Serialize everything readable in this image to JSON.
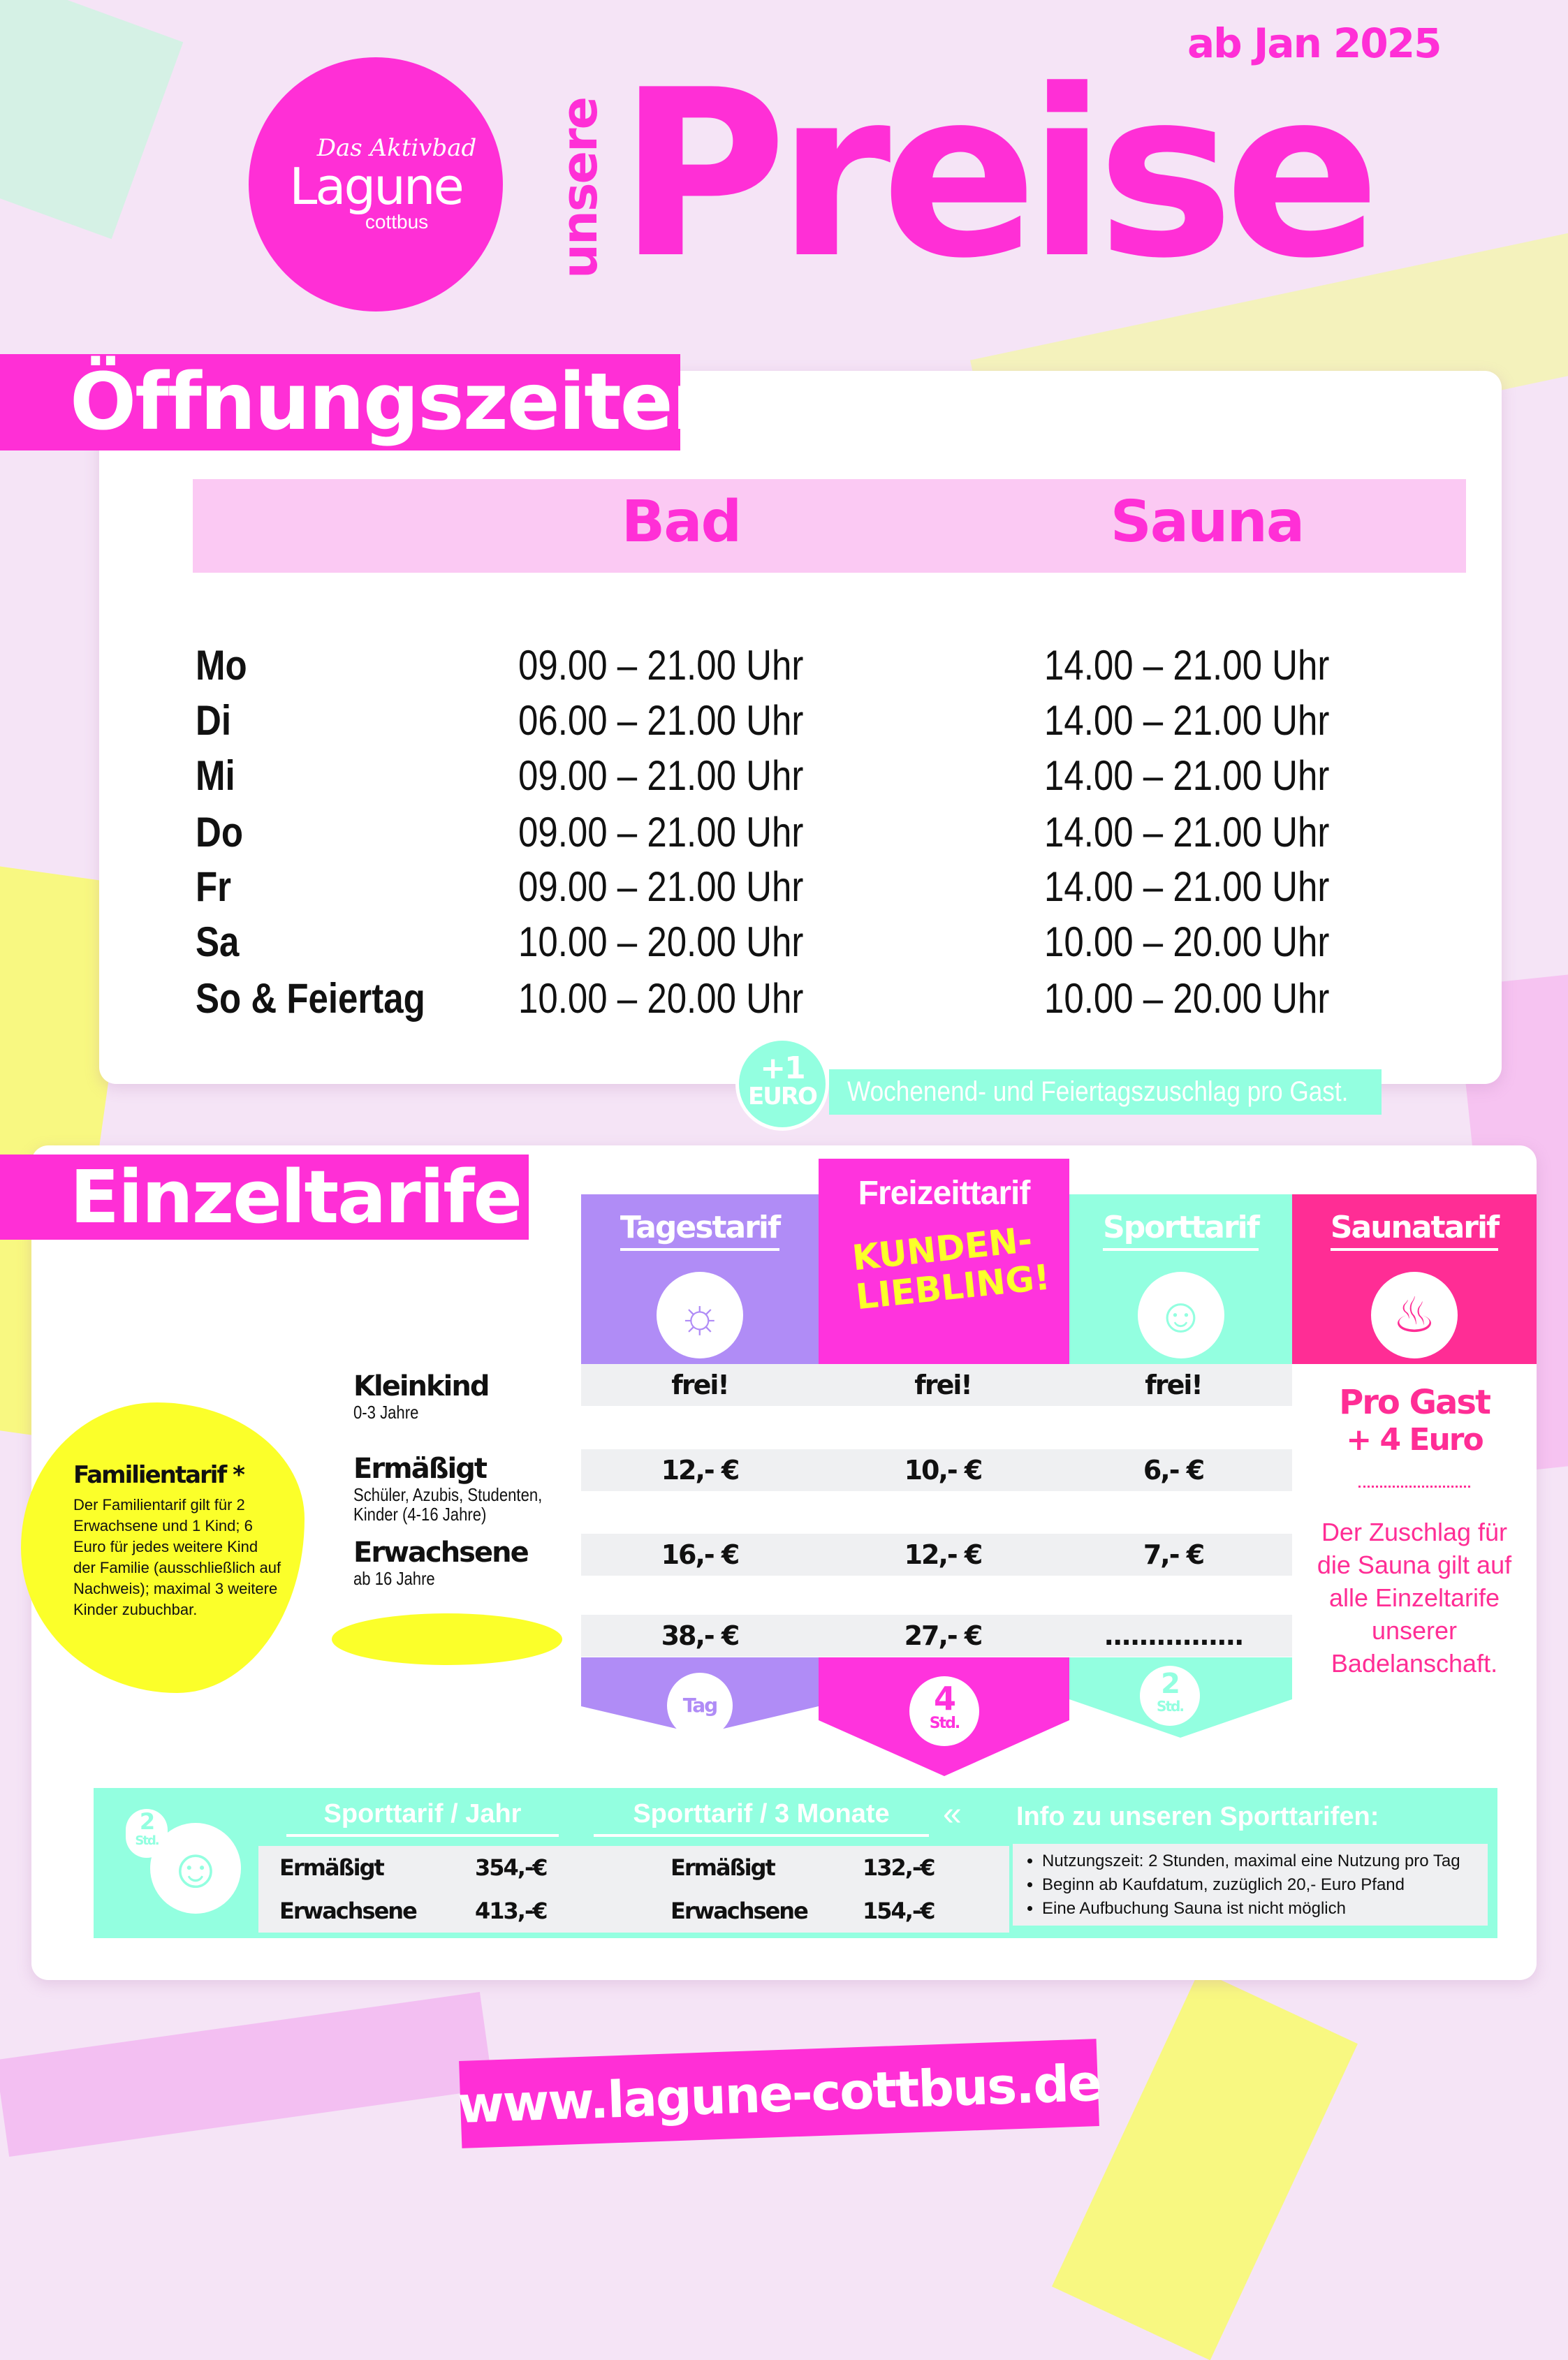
{
  "logo": {
    "tagline": "Das Aktivbad",
    "name": "Lagune",
    "city": "cottbus"
  },
  "header": {
    "pre": "unsere",
    "title": "Preise",
    "date": "ab Jan 2025"
  },
  "hours": {
    "title": "Öffnungszeiten",
    "columns": [
      "Bad",
      "Sauna"
    ],
    "rows": [
      {
        "day": "Mo",
        "bad": "09.00 – 21.00 Uhr",
        "sauna": "14.00 – 21.00 Uhr"
      },
      {
        "day": "Di",
        "bad": "06.00 – 21.00 Uhr",
        "sauna": "14.00 – 21.00 Uhr"
      },
      {
        "day": "Mi",
        "bad": "09.00 – 21.00 Uhr",
        "sauna": "14.00 – 21.00 Uhr"
      },
      {
        "day": "Do",
        "bad": "09.00 – 21.00 Uhr",
        "sauna": "14.00 – 21.00 Uhr"
      },
      {
        "day": "Fr",
        "bad": "09.00 – 21.00 Uhr",
        "sauna": "14.00 – 21.00 Uhr"
      },
      {
        "day": "Sa",
        "bad": "10.00 – 20.00 Uhr",
        "sauna": "10.00 – 20.00 Uhr"
      },
      {
        "day": "So & Feiertag",
        "bad": "10.00 – 20.00 Uhr",
        "sauna": "10.00 – 20.00 Uhr"
      }
    ],
    "surcharge_badge_top": "+1",
    "surcharge_badge_bottom": "EURO",
    "surcharge_text": "Wochenend- und Feiertagszuschlag pro Gast."
  },
  "tariffs": {
    "title": "Einzeltarife",
    "columns": [
      {
        "label": "Tagestarif",
        "icon": "sun-icon",
        "color": "#b08cf6",
        "footer": "Tag"
      },
      {
        "label": "Freizeittarif",
        "icon": "kundenliebling-badge",
        "badge": "KUNDEN-LIEBLING!",
        "color": "#ff33dd",
        "footer_num": "4",
        "footer_unit": "Std."
      },
      {
        "label": "Sporttarif",
        "icon": "swimmer-icon",
        "color": "#93ffe0",
        "footer_num": "2",
        "footer_unit": "Std."
      },
      {
        "label": "Saunatarif",
        "icon": "sauna-icon",
        "color": "#ff2d95"
      }
    ],
    "rows": [
      {
        "label": "Kleinkind",
        "sub": "0-3 Jahre",
        "prices": [
          "frei!",
          "frei!",
          "frei!"
        ]
      },
      {
        "label": "Ermäßigt",
        "sub": "Schüler, Azubis, Studenten, Kinder (4-16 Jahre)",
        "prices": [
          "12,- €",
          "10,- €",
          "6,- €"
        ]
      },
      {
        "label": "Erwachsene",
        "sub": "ab 16 Jahre",
        "prices": [
          "16,- €",
          "12,- €",
          "7,- €"
        ]
      },
      {
        "label": "Familientarif*",
        "sub": "",
        "prices": [
          "38,- €",
          "27,- €",
          "................"
        ]
      }
    ],
    "sauna": {
      "headline1": "Pro Gast",
      "headline2": "+ 4 Euro",
      "text": "Der Zuschlag für die Sauna gilt auf alle Einzeltarife unserer Badelanschaft."
    },
    "family_note": {
      "title": "Familientarif *",
      "text": "Der Familientarif gilt für 2 Erwachsene und 1 Kind; 6 Euro für jedes weitere Kind der Familie (ausschließlich auf Nachweis); maximal 3 weitere Kinder zubuchbar."
    }
  },
  "sport": {
    "badge_num": "2",
    "badge_unit": "Std.",
    "year_title": "Sporttarif / Jahr",
    "months_title": "Sporttarif / 3 Monate",
    "year": [
      {
        "label": "Ermäßigt",
        "price": "354,-€"
      },
      {
        "label": "Erwachsene",
        "price": "413,-€"
      }
    ],
    "months": [
      {
        "label": "Ermäßigt",
        "price": "132,-€"
      },
      {
        "label": "Erwachsene",
        "price": "154,-€"
      }
    ],
    "info_title": "Info zu unseren Sporttarifen:",
    "info": [
      "Nutzungszeit: 2 Stunden, maximal eine Nutzung pro Tag",
      "Beginn ab Kaufdatum, zuzüglich 20,- Euro Pfand",
      "Eine Aufbuchung Sauna ist nicht möglich"
    ]
  },
  "footer": {
    "url": "www.lagune-cottbus.de"
  },
  "colors": {
    "magenta": "#ff2fd6",
    "purple": "#b08cf6",
    "mint": "#93ffe0",
    "pink": "#ff2d95",
    "yellow": "#fbff2a"
  }
}
